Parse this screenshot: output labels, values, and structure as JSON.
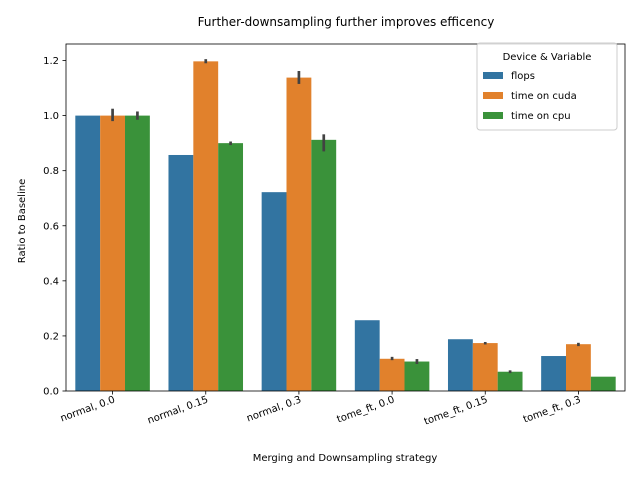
{
  "chart_data": {
    "type": "bar",
    "title": "Further-downsampling further improves efficency",
    "xlabel": "Merging and Downsampling strategy",
    "ylabel": "Ratio to Baseline",
    "categories": [
      "normal, 0.0",
      "normal, 0.15",
      "normal, 0.3",
      "tome_ft, 0.0",
      "tome_ft, 0.15",
      "tome_ft, 0.3"
    ],
    "ylim": [
      0,
      1.26
    ],
    "yticks": [
      "0.0",
      "0.2",
      "0.4",
      "0.6",
      "0.8",
      "1.0",
      "1.2"
    ],
    "grid": false,
    "legend": {
      "title": "Device & Variable",
      "placement": "top-right"
    },
    "series": [
      {
        "name": "flops",
        "color": "#3274a1",
        "values": [
          1.0,
          0.857,
          0.722,
          0.257,
          0.188,
          0.127
        ],
        "err_low": [
          1.0,
          0.857,
          0.722,
          0.257,
          0.188,
          0.127
        ],
        "err_high": [
          1.0,
          0.857,
          0.722,
          0.257,
          0.188,
          0.127
        ]
      },
      {
        "name": "time on cuda",
        "color": "#e1812c",
        "values": [
          1.0,
          1.197,
          1.138,
          0.117,
          0.174,
          0.17
        ],
        "err_low": [
          0.98,
          1.19,
          1.115,
          0.112,
          0.169,
          0.163
        ],
        "err_high": [
          1.025,
          1.205,
          1.162,
          0.124,
          0.178,
          0.175
        ]
      },
      {
        "name": "time on cpu",
        "color": "#3a923a",
        "values": [
          1.0,
          0.9,
          0.912,
          0.107,
          0.07,
          0.052
        ],
        "err_low": [
          0.985,
          0.893,
          0.87,
          0.098,
          0.065,
          0.052
        ],
        "err_high": [
          1.015,
          0.906,
          0.932,
          0.116,
          0.075,
          0.052
        ]
      }
    ]
  }
}
